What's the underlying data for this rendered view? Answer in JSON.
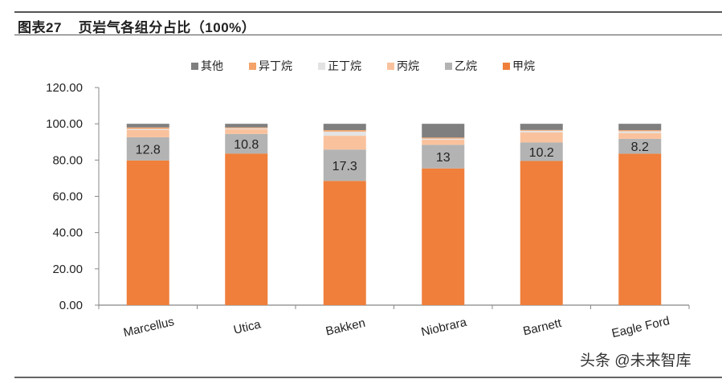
{
  "header": {
    "figure_title": "图表27    页岩气各组分占比（100%）"
  },
  "watermark": "头条 @未来智库",
  "colors": {
    "other": "#7f7f7f",
    "isobutane": "#f4a36a",
    "nbutane": "#e3e3e3",
    "propane": "#f9c29d",
    "ethane": "#b3b3b3",
    "methane": "#ef7f3b",
    "axis": "#888888",
    "text": "#222222"
  },
  "legend": [
    {
      "key": "other",
      "label": "其他",
      "color": "#7f7f7f"
    },
    {
      "key": "isobutane",
      "label": "异丁烷",
      "color": "#f4a36a"
    },
    {
      "key": "nbutane",
      "label": "正丁烷",
      "color": "#e3e3e3"
    },
    {
      "key": "propane",
      "label": "丙烷",
      "color": "#f9c29d"
    },
    {
      "key": "ethane",
      "label": "乙烷",
      "color": "#b3b3b3"
    },
    {
      "key": "methane",
      "label": "甲烷",
      "color": "#ef7f3b"
    }
  ],
  "chart_data": {
    "type": "bar",
    "stacked": true,
    "title": "页岩气各组分占比（100%）",
    "xlabel": "",
    "ylabel": "",
    "ylim": [
      0,
      120
    ],
    "yticks": [
      "0.00",
      "20.00",
      "40.00",
      "60.00",
      "80.00",
      "100.00",
      "120.00"
    ],
    "grid": false,
    "legend_position": "top",
    "categories": [
      "Marcellus",
      "Utica",
      "Bakken",
      "Niobrara",
      "Barnett",
      "Eagle Ford"
    ],
    "series": [
      {
        "name": "甲烷",
        "key": "methane",
        "values": [
          79.8,
          83.6,
          68.5,
          75.4,
          79.5,
          83.5
        ]
      },
      {
        "name": "乙烷",
        "key": "ethane",
        "values": [
          12.8,
          10.8,
          17.3,
          13.0,
          10.2,
          8.2
        ]
      },
      {
        "name": "丙烷",
        "key": "propane",
        "values": [
          4.0,
          2.6,
          7.6,
          2.8,
          5.6,
          3.2
        ]
      },
      {
        "name": "正丁烷",
        "key": "nbutane",
        "values": [
          0.6,
          0.5,
          2.3,
          0.6,
          0.9,
          1.0
        ]
      },
      {
        "name": "异丁烷",
        "key": "isobutane",
        "values": [
          0.8,
          0.5,
          0.8,
          0.6,
          0.4,
          0.6
        ]
      },
      {
        "name": "其他",
        "key": "other",
        "values": [
          2.0,
          2.0,
          3.5,
          7.6,
          3.4,
          3.5
        ]
      }
    ],
    "data_labels": {
      "series": "乙烷",
      "labels": [
        "12.8",
        "10.8",
        "17.3",
        "13",
        "10.2",
        "8.2"
      ]
    }
  }
}
